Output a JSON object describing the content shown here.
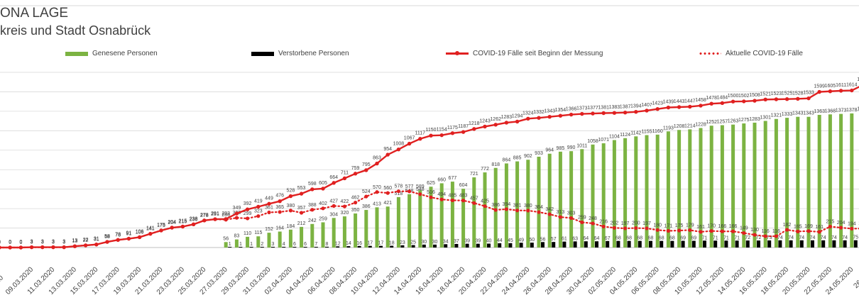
{
  "chart_data": {
    "type": "bar",
    "title": "ONA LAGE",
    "subtitle": "kreis und Stadt Osnabrück",
    "colors": {
      "recovered": "#7cb342",
      "deceased": "#000000",
      "cumulative": "#e02020",
      "active": "#e02020",
      "grid": "#d9d9d9",
      "text": "#404040"
    },
    "legend": {
      "recovered": "Genesene Personen",
      "deceased": "Verstorbene Personen",
      "cumulative": "COVID-19 Fälle seit Beginn der Messung",
      "active": "Aktuelle COVID-19 Fälle"
    },
    "date_labels": [
      "09.03.2020",
      "11.03.2020",
      "13.03.2020",
      "15.03.2020",
      "17.03.2020",
      "19.03.2020",
      "21.03.2020",
      "23.03.2020",
      "25.03.2020",
      "27.03.2020",
      "29.03.2020",
      "31.03.2020",
      "02.04.2020",
      "04.04.2020",
      "06.04.2020",
      "08.04.2020",
      "10.04.2020",
      "12.04.2020",
      "14.04.2020",
      "16.04.2020",
      "18.04.2020",
      "20.04.2020",
      "22.04.2020",
      "24.04.2020",
      "26.04.2020",
      "28.04.2020",
      "30.04.2020",
      "02.05.2020",
      "04.05.2020",
      "06.05.2020",
      "08.05.2020",
      "10.05.2020",
      "12.05.2020",
      "14.05.2020",
      "16.05.2020",
      "18.05.2020",
      "20.05.2020",
      "22.05.2020",
      "24.05.2020",
      "26.05"
    ],
    "first_tick_partial": "020",
    "cumulative_cases": [
      0,
      0,
      0,
      3,
      3,
      3,
      3,
      13,
      22,
      31,
      58,
      78,
      91,
      106,
      141,
      175,
      204,
      215,
      238,
      278,
      291,
      293,
      349,
      392,
      419,
      449,
      476,
      528,
      553,
      598,
      605,
      664,
      711,
      759,
      795,
      863,
      954,
      1008,
      1067,
      1117,
      1150,
      1154,
      1175,
      1187,
      1218,
      1243,
      1262,
      1283,
      1294,
      1324,
      1332,
      1343,
      1354,
      1366,
      1373,
      1377,
      1381,
      1383,
      1387,
      1394,
      1407,
      1423,
      1439,
      1443,
      1447,
      1458,
      1478,
      1484,
      1500,
      1502,
      1508,
      1521,
      1523,
      1525,
      1528,
      1533,
      1599,
      1605,
      1611,
      1614,
      1668,
      1669,
      1670,
      1672
    ],
    "active_cases": [
      0,
      0,
      0,
      3,
      3,
      3,
      3,
      13,
      22,
      31,
      58,
      78,
      91,
      106,
      141,
      175,
      204,
      215,
      238,
      278,
      291,
      286,
      305,
      299,
      323,
      361,
      365,
      380,
      357,
      388,
      402,
      427,
      422,
      462,
      524,
      570,
      560,
      578,
      577,
      548,
      516,
      494,
      485,
      483,
      457,
      425,
      386,
      394,
      381,
      380,
      364,
      342,
      313,
      303,
      259,
      248,
      216,
      202,
      197,
      200,
      197,
      180,
      171,
      175,
      179,
      161,
      170,
      166,
      166,
      149,
      130,
      116,
      116,
      182,
      165,
      169,
      161,
      215,
      204,
      194,
      195
    ],
    "active_start_index": 0,
    "recovered": [
      56,
      83,
      110,
      115,
      152,
      164,
      184,
      212,
      242,
      259,
      304,
      320,
      350,
      386,
      413,
      421,
      518,
      548,
      589,
      625,
      660,
      677,
      604,
      721,
      772,
      818,
      864,
      885,
      902,
      933,
      964,
      985,
      990,
      1011,
      1058,
      1071,
      1104,
      1124,
      1142,
      1155,
      1160,
      1193,
      1208,
      1214,
      1228,
      1252,
      1257,
      1263,
      1275,
      1283,
      1301,
      1321,
      1333,
      1343,
      1343,
      1363,
      1368,
      1373,
      1378,
      1390,
      1401
    ],
    "recovered_start_index": 21,
    "deceased": [
      1,
      1,
      1,
      2,
      3,
      4,
      6,
      6,
      7,
      8,
      12,
      14,
      16,
      17,
      17,
      18,
      23,
      25,
      30,
      30,
      34,
      37,
      39,
      39,
      40,
      44,
      45,
      49,
      50,
      56,
      57,
      61,
      63,
      64,
      64,
      67,
      68,
      68,
      68,
      68,
      68,
      68,
      69,
      69,
      71,
      71,
      71,
      71,
      72,
      72,
      73,
      74,
      74,
      74,
      74,
      74,
      74,
      74,
      75,
      75,
      75
    ],
    "deceased_start_index": 21,
    "ylim": [
      0,
      1800
    ]
  }
}
